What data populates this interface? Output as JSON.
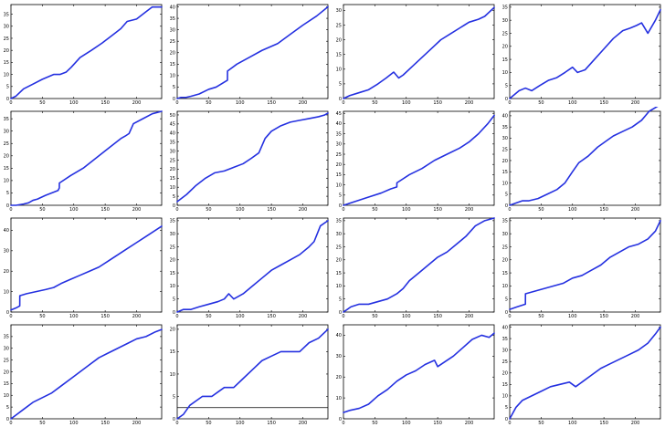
{
  "colors": {
    "series": "#2430e0",
    "axis": "#000000",
    "background": "#ffffff"
  },
  "chart_data": [
    {
      "type": "line",
      "ylim": [
        0,
        39
      ],
      "xticks": [
        0,
        50,
        100,
        150,
        200
      ],
      "yticks": [
        0,
        5,
        10,
        15,
        20,
        25,
        30,
        35
      ],
      "x": [
        0,
        8,
        20,
        35,
        50,
        68,
        78,
        88,
        96,
        110,
        128,
        145,
        160,
        175,
        185,
        200,
        215,
        225,
        240
      ],
      "y": [
        0,
        1,
        4,
        6,
        8,
        10,
        10,
        11,
        13,
        17,
        20,
        23,
        26,
        29,
        32,
        33,
        36,
        38,
        38
      ]
    },
    {
      "type": "line",
      "ylim": [
        0,
        41
      ],
      "xticks": [
        0,
        50,
        100,
        150,
        200
      ],
      "yticks": [
        0,
        5,
        10,
        15,
        20,
        25,
        30,
        35,
        40
      ],
      "x": [
        0,
        6,
        14,
        22,
        35,
        50,
        62,
        74,
        80,
        80.1,
        95,
        115,
        135,
        160,
        180,
        200,
        222,
        240
      ],
      "y": [
        0,
        0.5,
        0.5,
        1,
        2,
        4,
        5,
        7,
        8,
        12,
        15,
        18,
        21,
        24,
        28,
        32,
        36,
        40
      ]
    },
    {
      "type": "line",
      "ylim": [
        0,
        32
      ],
      "xticks": [
        0,
        50,
        100,
        150,
        200
      ],
      "yticks": [
        0,
        5,
        10,
        15,
        20,
        25,
        30
      ],
      "x": [
        0,
        10,
        25,
        40,
        55,
        68,
        80,
        88,
        95,
        110,
        125,
        140,
        155,
        170,
        185,
        200,
        215,
        225,
        240
      ],
      "y": [
        0,
        1,
        2,
        3,
        5,
        7,
        9,
        7,
        8,
        11,
        14,
        17,
        20,
        22,
        24,
        26,
        27,
        28,
        31
      ]
    },
    {
      "type": "line",
      "ylim": [
        0,
        36
      ],
      "xticks": [
        0,
        50,
        100,
        150,
        200
      ],
      "yticks": [
        0,
        5,
        10,
        15,
        20,
        25,
        30,
        35
      ],
      "x": [
        0,
        15,
        25,
        35,
        48,
        62,
        75,
        88,
        100,
        108,
        120,
        135,
        150,
        165,
        180,
        192,
        202,
        210,
        220,
        232,
        240
      ],
      "y": [
        0,
        3,
        4,
        3,
        5,
        7,
        8,
        10,
        12,
        10,
        11,
        15,
        19,
        23,
        26,
        27,
        28,
        29,
        25,
        30,
        34
      ]
    },
    {
      "type": "line",
      "ylim": [
        0,
        38
      ],
      "xticks": [
        0,
        50,
        100,
        150,
        200
      ],
      "yticks": [
        0,
        5,
        10,
        15,
        20,
        25,
        30,
        35
      ],
      "x": [
        0,
        8,
        20,
        28,
        35,
        42,
        55,
        75,
        77,
        77.1,
        95,
        115,
        135,
        155,
        175,
        182,
        188,
        195,
        210,
        225,
        240
      ],
      "y": [
        0,
        0,
        0.5,
        1,
        2,
        2.5,
        4,
        6,
        7,
        9,
        12,
        15,
        19,
        23,
        27,
        28,
        29,
        33,
        35,
        37,
        38
      ]
    },
    {
      "type": "line",
      "ylim": [
        0,
        52
      ],
      "xticks": [
        0,
        50,
        100,
        150,
        200
      ],
      "yticks": [
        0,
        5,
        10,
        15,
        20,
        25,
        30,
        35,
        40,
        45,
        50
      ],
      "x": [
        0,
        15,
        30,
        45,
        60,
        75,
        90,
        105,
        118,
        130,
        140,
        150,
        165,
        180,
        195,
        210,
        225,
        235,
        240
      ],
      "y": [
        2,
        6,
        11,
        15,
        18,
        19,
        21,
        23,
        26,
        29,
        37,
        41,
        44,
        46,
        47,
        48,
        49,
        50,
        51
      ]
    },
    {
      "type": "line",
      "ylim": [
        0,
        46
      ],
      "xticks": [
        0,
        50,
        100,
        150,
        200
      ],
      "yticks": [
        0,
        5,
        10,
        15,
        20,
        25,
        30,
        35,
        40,
        45
      ],
      "x": [
        0,
        20,
        40,
        60,
        75,
        85,
        85.1,
        105,
        125,
        145,
        165,
        185,
        200,
        215,
        230,
        240
      ],
      "y": [
        0,
        2,
        4,
        6,
        8,
        9,
        11,
        15,
        18,
        22,
        25,
        28,
        31,
        35,
        40,
        44
      ]
    },
    {
      "type": "line",
      "ylim": [
        0,
        42
      ],
      "xticks": [
        0,
        50,
        100,
        150,
        200
      ],
      "yticks": [
        0,
        5,
        10,
        15,
        20,
        25,
        30,
        35,
        40
      ],
      "x": [
        0,
        10,
        20,
        30,
        45,
        60,
        75,
        88,
        100,
        110,
        125,
        140,
        155,
        165,
        180,
        195,
        210,
        222,
        240
      ],
      "y": [
        0,
        1,
        2,
        2,
        3,
        5,
        7,
        10,
        15,
        19,
        22,
        26,
        29,
        31,
        33,
        35,
        38,
        42,
        45
      ]
    },
    {
      "type": "line",
      "ylim": [
        0,
        46
      ],
      "xticks": [
        0,
        50,
        100,
        150,
        200
      ],
      "yticks": [
        0,
        10,
        20,
        30,
        40
      ],
      "x": [
        0,
        8,
        14,
        14.1,
        25,
        40,
        55,
        68,
        80,
        95,
        110,
        125,
        140,
        155,
        170,
        185,
        200,
        215,
        240
      ],
      "y": [
        1,
        2,
        3,
        8,
        9,
        10,
        11,
        12,
        14,
        16,
        18,
        20,
        22,
        25,
        28,
        31,
        34,
        37,
        42
      ]
    },
    {
      "type": "line",
      "ylim": [
        0,
        36
      ],
      "xticks": [
        0,
        50,
        100,
        150,
        200
      ],
      "yticks": [
        0,
        5,
        10,
        15,
        20,
        25,
        30,
        35
      ],
      "x": [
        0,
        10,
        22,
        35,
        50,
        65,
        75,
        82,
        90,
        105,
        120,
        135,
        150,
        165,
        180,
        195,
        210,
        218,
        228,
        240
      ],
      "y": [
        0,
        1,
        1,
        2,
        3,
        4,
        5,
        7,
        5,
        7,
        10,
        13,
        16,
        18,
        20,
        22,
        25,
        27,
        33,
        35
      ]
    },
    {
      "type": "line",
      "ylim": [
        0,
        36
      ],
      "xticks": [
        0,
        50,
        100,
        150,
        200
      ],
      "yticks": [
        0,
        5,
        10,
        15,
        20,
        25,
        30,
        35
      ],
      "x": [
        0,
        12,
        25,
        40,
        55,
        70,
        85,
        95,
        105,
        120,
        135,
        150,
        165,
        180,
        195,
        210,
        225,
        240
      ],
      "y": [
        0,
        2,
        3,
        3,
        4,
        5,
        7,
        9,
        12,
        15,
        18,
        21,
        23,
        26,
        29,
        33,
        35,
        36
      ]
    },
    {
      "type": "line",
      "ylim": [
        0,
        36
      ],
      "xticks": [
        0,
        50,
        100,
        150,
        200
      ],
      "yticks": [
        0,
        5,
        10,
        15,
        20,
        25,
        30,
        35
      ],
      "x": [
        0,
        12,
        25,
        25.1,
        40,
        55,
        70,
        85,
        100,
        115,
        130,
        145,
        160,
        175,
        190,
        205,
        220,
        232,
        240
      ],
      "y": [
        1,
        2,
        3,
        7,
        8,
        9,
        10,
        11,
        13,
        14,
        16,
        18,
        21,
        23,
        25,
        26,
        28,
        31,
        35
      ]
    },
    {
      "type": "line",
      "ylim": [
        0,
        40
      ],
      "xticks": [
        0,
        50,
        100,
        150,
        200
      ],
      "yticks": [
        0,
        5,
        10,
        15,
        20,
        25,
        30,
        35
      ],
      "x": [
        0,
        10,
        20,
        35,
        50,
        65,
        80,
        95,
        110,
        125,
        140,
        155,
        170,
        185,
        200,
        215,
        230,
        240
      ],
      "y": [
        0,
        2,
        4,
        7,
        9,
        11,
        14,
        17,
        20,
        23,
        26,
        28,
        30,
        32,
        34,
        35,
        37,
        38
      ]
    },
    {
      "type": "line",
      "ylim": [
        0,
        21
      ],
      "xticks": [
        0,
        50,
        100,
        150,
        200
      ],
      "yticks": [
        0,
        5,
        10,
        15,
        20
      ],
      "hline": 2.5,
      "x": [
        0,
        10,
        20,
        30,
        40,
        55,
        65,
        75,
        90,
        105,
        120,
        135,
        150,
        165,
        180,
        195,
        210,
        225,
        240
      ],
      "y": [
        0,
        1,
        3,
        4,
        5,
        5,
        6,
        7,
        7,
        9,
        11,
        13,
        14,
        15,
        15,
        15,
        17,
        18,
        20
      ]
    },
    {
      "type": "line",
      "ylim": [
        0,
        45
      ],
      "xticks": [
        0,
        50,
        100,
        150,
        200
      ],
      "yticks": [
        0,
        10,
        20,
        30,
        40
      ],
      "x": [
        0,
        10,
        25,
        40,
        55,
        70,
        85,
        100,
        115,
        130,
        145,
        150,
        160,
        175,
        190,
        205,
        220,
        232,
        240
      ],
      "y": [
        3,
        4,
        5,
        7,
        11,
        14,
        18,
        21,
        23,
        26,
        28,
        25,
        27,
        30,
        34,
        38,
        40,
        39,
        41
      ]
    },
    {
      "type": "line",
      "ylim": [
        0,
        41
      ],
      "xticks": [
        0,
        50,
        100,
        150,
        200
      ],
      "yticks": [
        0,
        5,
        10,
        15,
        20,
        25,
        30,
        35,
        40
      ],
      "x": [
        0,
        10,
        20,
        35,
        50,
        65,
        80,
        95,
        105,
        115,
        130,
        145,
        160,
        175,
        190,
        205,
        220,
        232,
        240
      ],
      "y": [
        0,
        5,
        8,
        10,
        12,
        14,
        15,
        16,
        14,
        16,
        19,
        22,
        24,
        26,
        28,
        30,
        33,
        37,
        40
      ]
    }
  ]
}
